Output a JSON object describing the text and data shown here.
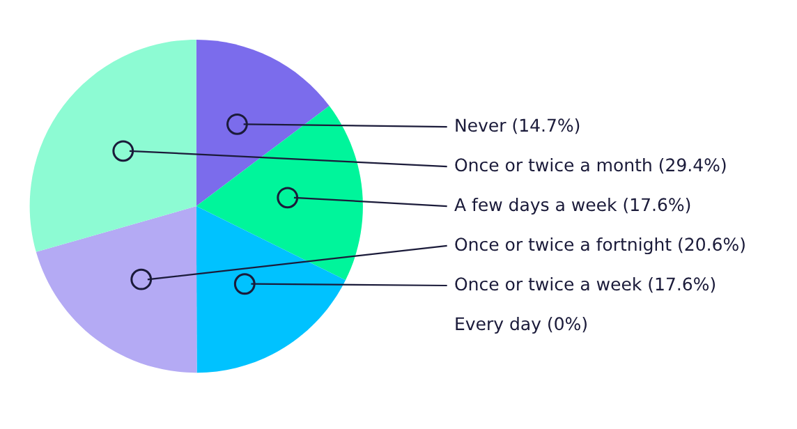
{
  "chart_data": {
    "type": "pie",
    "categories": [
      "Never (14.7%)",
      "A few days a week (17.6%)",
      "Once or twice a week (17.6%)",
      "Once or twice a fortnight (20.6%)",
      "Once or twice a month (29.4%)",
      "Every day (0%)"
    ],
    "values": [
      14.7,
      17.6,
      17.6,
      20.6,
      29.4,
      0
    ],
    "colors": [
      "#7b6cec",
      "#00f59b",
      "#00c2ff",
      "#b4aaf4",
      "#8dfbd3",
      "#5a5ae0"
    ]
  }
}
